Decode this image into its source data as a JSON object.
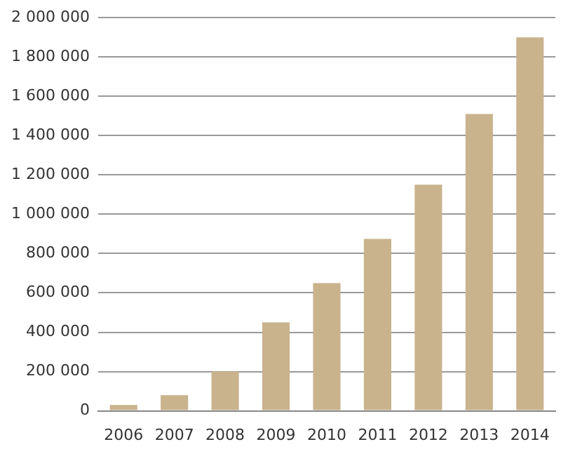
{
  "chart_data": {
    "type": "bar",
    "categories": [
      "2006",
      "2007",
      "2008",
      "2009",
      "2010",
      "2011",
      "2012",
      "2013",
      "2014"
    ],
    "values": [
      30000,
      80000,
      200000,
      450000,
      650000,
      875000,
      1150000,
      1510000,
      1900000
    ],
    "color": "#c9b38d",
    "ylim": [
      0,
      2000000
    ],
    "yticks": [
      0,
      {
        "value": 200000,
        "label": "200 000"
      },
      {
        "value": 400000,
        "label": "400 000"
      },
      {
        "value": 600000,
        "label": "600 000"
      },
      {
        "value": 800000,
        "label": "800 000"
      },
      {
        "value": 1000000,
        "label": "1 000 000"
      },
      {
        "value": 1200000,
        "label": "1 200 000"
      },
      {
        "value": 1400000,
        "label": "1 400 000"
      },
      {
        "value": 1600000,
        "label": "1 600 000"
      },
      {
        "value": 1800000,
        "label": "1 800 000"
      },
      {
        "value": 2000000,
        "label": "2 000 000"
      }
    ],
    "grid": "y"
  }
}
